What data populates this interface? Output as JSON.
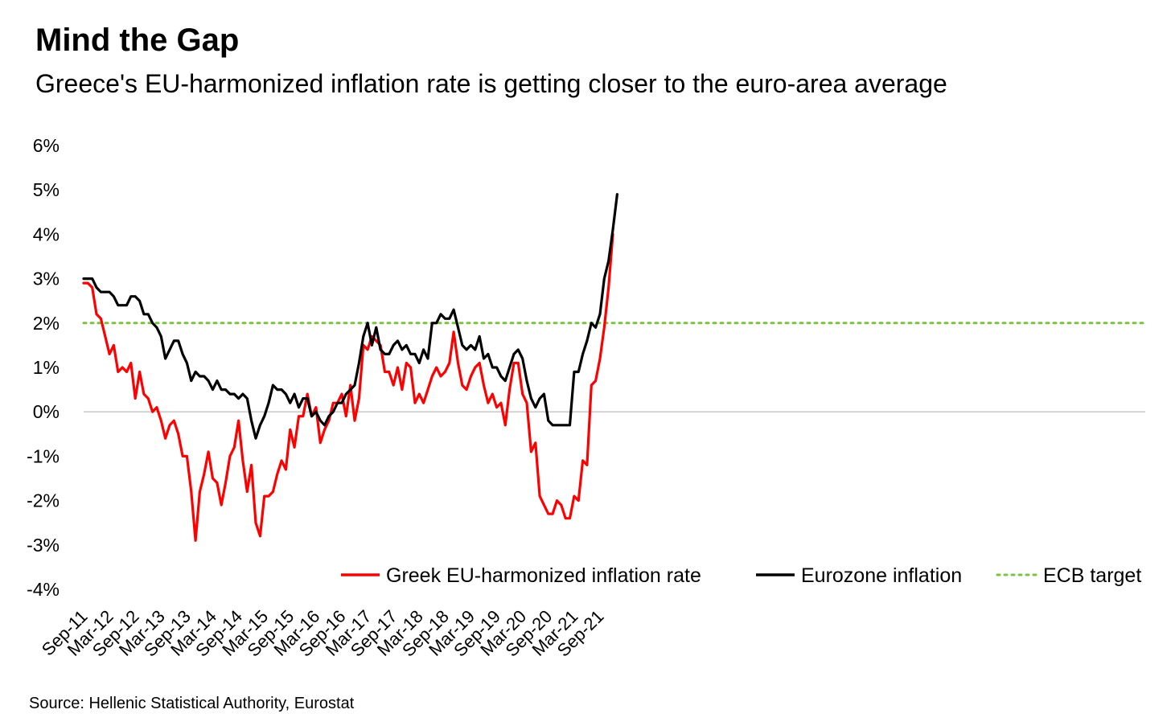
{
  "header": {
    "title": "Mind the Gap",
    "subtitle": "Greece's EU-harmonized inflation rate is getting closer to the euro-area average"
  },
  "footer": {
    "source": "Source: Hellenic Statistical Authority, Eurostat"
  },
  "chart_data": {
    "type": "line",
    "ylim": [
      -4,
      6
    ],
    "y_ticks": [
      6,
      5,
      4,
      3,
      2,
      1,
      0,
      -1,
      -2,
      -3,
      -4
    ],
    "y_tick_labels": [
      "6%",
      "5%",
      "4%",
      "3%",
      "2%",
      "1%",
      "0%",
      "-1%",
      "-2%",
      "-3%",
      "-4%"
    ],
    "x_tick_labels": [
      "Sep-11",
      "Mar-12",
      "Sep-12",
      "Mar-13",
      "Sep-13",
      "Mar-14",
      "Sep-14",
      "Mar-15",
      "Sep-15",
      "Mar-16",
      "Sep-16",
      "Mar-17",
      "Sep-17",
      "Mar-18",
      "Sep-18",
      "Mar-19",
      "Sep-19",
      "Mar-20",
      "Sep-20",
      "Mar-21",
      "Sep-21"
    ],
    "x_start": "Sep-11",
    "x_end": "Nov-21",
    "grid": false,
    "legend_position": "bottom-right",
    "series": [
      {
        "name": "Greek EU-harmonized inflation rate",
        "color": "#ff0000",
        "values": [
          2.9,
          2.9,
          2.8,
          2.2,
          2.1,
          1.7,
          1.3,
          1.5,
          0.9,
          1.0,
          0.9,
          1.1,
          0.3,
          0.9,
          0.4,
          0.3,
          0.0,
          0.1,
          -0.2,
          -0.6,
          -0.3,
          -0.2,
          -0.5,
          -1.0,
          -1.0,
          -1.8,
          -2.9,
          -1.8,
          -1.4,
          -0.9,
          -1.5,
          -1.6,
          -2.1,
          -1.6,
          -1.0,
          -0.8,
          -0.2,
          -1.1,
          -1.8,
          -1.2,
          -2.5,
          -2.8,
          -1.9,
          -1.9,
          -1.8,
          -1.4,
          -1.1,
          -1.3,
          -0.4,
          -0.8,
          -0.1,
          -0.1,
          0.4,
          -0.1,
          0.1,
          -0.7,
          -0.4,
          -0.2,
          0.2,
          0.2,
          0.4,
          -0.1,
          0.6,
          -0.2,
          0.3,
          1.5,
          1.4,
          1.7,
          1.6,
          1.5,
          0.9,
          0.9,
          0.6,
          1.0,
          0.5,
          1.1,
          1.0,
          0.2,
          0.4,
          0.2,
          0.5,
          0.8,
          1.0,
          0.8,
          0.9,
          1.1,
          1.8,
          1.1,
          0.6,
          0.5,
          0.8,
          1.0,
          1.1,
          0.6,
          0.2,
          0.4,
          0.1,
          0.2,
          -0.3,
          0.5,
          1.1,
          1.1,
          0.4,
          0.2,
          -0.9,
          -0.7,
          -1.9,
          -2.1,
          -2.3,
          -2.3,
          -2.0,
          -2.1,
          -2.4,
          -2.4,
          -1.9,
          -2.0,
          -1.1,
          -1.2,
          0.6,
          0.7,
          1.2,
          1.9,
          2.8,
          4.0
        ]
      },
      {
        "name": "Eurozone inflation",
        "color": "#000000",
        "values": [
          3.0,
          3.0,
          3.0,
          2.8,
          2.7,
          2.7,
          2.7,
          2.6,
          2.4,
          2.4,
          2.4,
          2.6,
          2.6,
          2.5,
          2.2,
          2.2,
          2.0,
          1.9,
          1.7,
          1.2,
          1.4,
          1.6,
          1.6,
          1.3,
          1.1,
          0.7,
          0.9,
          0.8,
          0.8,
          0.7,
          0.5,
          0.7,
          0.5,
          0.5,
          0.4,
          0.4,
          0.3,
          0.4,
          0.3,
          -0.2,
          -0.6,
          -0.3,
          -0.1,
          0.2,
          0.6,
          0.5,
          0.5,
          0.4,
          0.2,
          0.4,
          0.1,
          0.3,
          0.3,
          -0.1,
          0.0,
          -0.2,
          -0.3,
          -0.1,
          0.0,
          0.2,
          0.2,
          0.4,
          0.5,
          0.6,
          1.1,
          1.7,
          2.0,
          1.5,
          1.9,
          1.4,
          1.3,
          1.3,
          1.5,
          1.6,
          1.4,
          1.5,
          1.3,
          1.3,
          1.1,
          1.4,
          1.2,
          2.0,
          2.0,
          2.2,
          2.1,
          2.1,
          2.3,
          1.9,
          1.5,
          1.4,
          1.5,
          1.4,
          1.7,
          1.2,
          1.3,
          1.0,
          1.0,
          0.8,
          0.7,
          1.0,
          1.3,
          1.4,
          1.2,
          0.7,
          0.3,
          0.1,
          0.3,
          0.4,
          -0.2,
          -0.3,
          -0.3,
          -0.3,
          -0.3,
          -0.3,
          0.9,
          0.9,
          1.3,
          1.6,
          2.0,
          1.9,
          2.2,
          3.0,
          3.4,
          4.1,
          4.9
        ]
      },
      {
        "name": "ECB target",
        "color": "#7dc242",
        "style": "dotted",
        "values": [
          2.0
        ]
      }
    ]
  }
}
